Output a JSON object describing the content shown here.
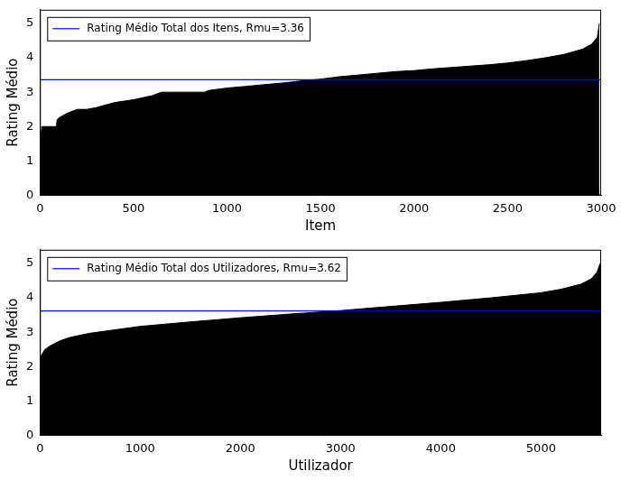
{
  "chart_data": [
    {
      "type": "area",
      "x_label": "Item",
      "y_label": "Rating Médio",
      "x": [
        0,
        5,
        10,
        20,
        50,
        88,
        92,
        100,
        150,
        200,
        250,
        300,
        400,
        500,
        600,
        650,
        700,
        800,
        880,
        900,
        1000,
        1100,
        1200,
        1300,
        1400,
        1500,
        1600,
        1700,
        1800,
        1900,
        2000,
        2100,
        2200,
        2300,
        2400,
        2500,
        2600,
        2700,
        2800,
        2900,
        2950,
        2980,
        2985,
        2990,
        3000
      ],
      "series": [
        {
          "type": "area",
          "color": "#000000",
          "values": [
            1.5,
            1.75,
            2.0,
            2.0,
            2.0,
            2.0,
            2.2,
            2.25,
            2.4,
            2.5,
            2.5,
            2.55,
            2.7,
            2.78,
            2.9,
            3.0,
            3.0,
            3.0,
            3.0,
            3.05,
            3.12,
            3.17,
            3.22,
            3.27,
            3.33,
            3.38,
            3.45,
            3.5,
            3.55,
            3.6,
            3.63,
            3.68,
            3.72,
            3.76,
            3.8,
            3.85,
            3.92,
            4.0,
            4.1,
            4.25,
            4.4,
            4.6,
            4.8,
            5.0,
            null
          ]
        },
        {
          "type": "line",
          "name": "Rating Médio Total dos Itens, Rmu=3.36",
          "color": "#0000ff",
          "values": [
            3.36,
            3.36,
            3.36,
            3.36,
            3.36,
            3.36,
            3.36,
            3.36,
            3.36,
            3.36,
            3.36,
            3.36,
            3.36,
            3.36,
            3.36,
            3.36,
            3.36,
            3.36,
            3.36,
            3.36,
            3.36,
            3.36,
            3.36,
            3.36,
            3.36,
            3.36,
            3.36,
            3.36,
            3.36,
            3.36,
            3.36,
            3.36,
            3.36,
            3.36,
            3.36,
            3.36,
            3.36,
            3.36,
            3.36,
            3.36,
            3.36,
            3.36,
            3.36,
            3.36,
            3.36
          ]
        }
      ],
      "xlim": [
        0,
        3000
      ],
      "xticks": [
        0,
        500,
        1000,
        1500,
        2000,
        2500,
        3000
      ],
      "ylim": [
        0,
        5.4
      ],
      "yticks": [
        0,
        1,
        2,
        3,
        4,
        5
      ],
      "grid": false,
      "legend": "upper left"
    },
    {
      "type": "area",
      "x_label": "Utilizador",
      "y_label": "Rating Médio",
      "x": [
        0,
        10,
        50,
        100,
        200,
        300,
        500,
        700,
        1000,
        1500,
        2000,
        2500,
        3000,
        3500,
        4000,
        4500,
        5000,
        5200,
        5400,
        5500,
        5560,
        5590,
        5600
      ],
      "series": [
        {
          "type": "area",
          "color": "#000000",
          "values": [
            2.0,
            2.3,
            2.5,
            2.6,
            2.75,
            2.85,
            2.97,
            3.05,
            3.17,
            3.3,
            3.42,
            3.53,
            3.63,
            3.75,
            3.87,
            4.0,
            4.15,
            4.25,
            4.4,
            4.55,
            4.75,
            5.0,
            5.0
          ]
        },
        {
          "type": "line",
          "name": "Rating Médio Total dos Utilizadores, Rmu=3.62",
          "color": "#0000ff",
          "values": [
            3.62,
            3.62,
            3.62,
            3.62,
            3.62,
            3.62,
            3.62,
            3.62,
            3.62,
            3.62,
            3.62,
            3.62,
            3.62,
            3.62,
            3.62,
            3.62,
            3.62,
            3.62,
            3.62,
            3.62,
            3.62,
            3.62,
            3.62
          ]
        }
      ],
      "xlim": [
        0,
        5600
      ],
      "xticks": [
        0,
        1000,
        2000,
        3000,
        4000,
        5000
      ],
      "ylim": [
        0,
        5.4
      ],
      "yticks": [
        0,
        1,
        2,
        3,
        4,
        5
      ],
      "grid": false,
      "legend": "upper left"
    }
  ]
}
